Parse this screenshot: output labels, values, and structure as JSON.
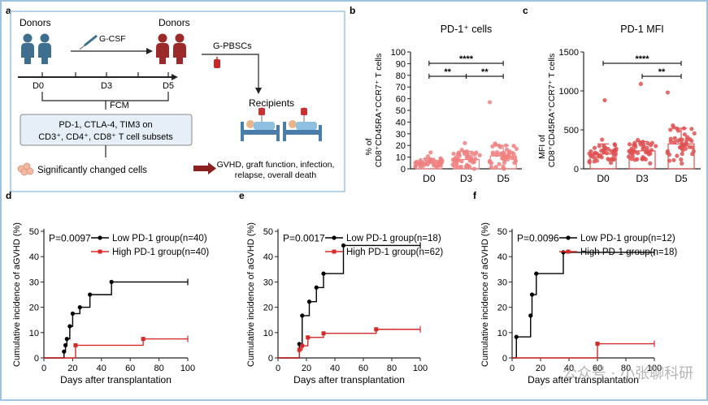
{
  "panel_labels": {
    "a": "a",
    "b": "b",
    "c": "c",
    "d": "d",
    "e": "e",
    "f": "f"
  },
  "schematic": {
    "donors_left": "Donors",
    "donors_right": "Donors",
    "gcsf": "G-CSF",
    "gpbscs": "G-PBSCs",
    "timeline": [
      "D0",
      "D3",
      "D5"
    ],
    "fcm": "FCM",
    "assay_line1": "PD-1, CTLA-4, TIM3 on",
    "assay_line2": "CD3⁺, CD4⁺, CD8⁺ T cell subsets",
    "recipients": "Recipients",
    "changed_cells": "Significantly changed cells",
    "outcomes_line1": "GVHD, graft function, infection,",
    "outcomes_line2": "relapse, overall death",
    "colors": {
      "border": "#9ec3e0",
      "donor_blue": "#3e6f8f",
      "donor_red": "#9b2b2b",
      "box_fill": "#e6eef7",
      "outcome_arrow": "#8b2020"
    }
  },
  "chart_data": [
    {
      "panel": "b",
      "type": "scatter",
      "title": "PD-1⁺ cells",
      "ylabel_prefix": "% of",
      "ylabel": "CD8⁺CD45RA⁺CCR7⁺ T cells",
      "categories": [
        "D0",
        "D3",
        "D5"
      ],
      "ylim": [
        0,
        100
      ],
      "yticks": [
        0,
        10,
        20,
        30,
        40,
        50,
        60,
        70,
        80,
        90,
        100
      ],
      "means": [
        5,
        8,
        11
      ],
      "sd": [
        4,
        7,
        9
      ],
      "maxima": [
        14,
        22,
        57
      ],
      "significance": [
        {
          "from": "D0",
          "to": "D5",
          "label": "****"
        },
        {
          "from": "D0",
          "to": "D3",
          "label": "**"
        },
        {
          "from": "D3",
          "to": "D5",
          "label": "**"
        }
      ],
      "color": "#f08080"
    },
    {
      "panel": "c",
      "type": "scatter",
      "title": "PD-1 MFI",
      "ylabel_prefix": "MFI of",
      "ylabel": "CD8⁺CD45RA⁺CCR7⁺ T cells",
      "categories": [
        "D0",
        "D3",
        "D5"
      ],
      "ylim": [
        0,
        1500
      ],
      "yticks": [
        0,
        500,
        1000,
        1500
      ],
      "means": [
        190,
        230,
        320
      ],
      "sd": [
        130,
        120,
        200
      ],
      "maxima": [
        880,
        1090,
        980
      ],
      "significance": [
        {
          "from": "D0",
          "to": "D5",
          "label": "****"
        },
        {
          "from": "D3",
          "to": "D5",
          "label": "**"
        }
      ],
      "color": "#e05050"
    },
    {
      "panel": "d",
      "type": "line",
      "xlabel": "Days after transplantation",
      "ylabel": "Cumulative incidence of aGVHD (%)",
      "xlim": [
        0,
        100
      ],
      "ylim": [
        0,
        50
      ],
      "xticks": [
        0,
        20,
        40,
        60,
        80,
        100
      ],
      "yticks": [
        0,
        10,
        20,
        30,
        40,
        50
      ],
      "pvalue": "P=0.0097",
      "series": [
        {
          "name": "Low PD-1 group(n=40)",
          "color": "#000000",
          "x": [
            0,
            13,
            14,
            15,
            16,
            18,
            20,
            25,
            32,
            47,
            100
          ],
          "y": [
            0,
            0,
            2.5,
            5,
            7.5,
            12.5,
            17.5,
            20,
            25,
            30,
            30
          ]
        },
        {
          "name": "High PD-1 group(n=40)",
          "color": "#d42a2a",
          "x": [
            0,
            14,
            22,
            69,
            100
          ],
          "y": [
            0,
            0,
            5,
            7.5,
            7.5
          ]
        }
      ]
    },
    {
      "panel": "e",
      "type": "line",
      "xlabel": "Days after transplantation",
      "ylabel": "Cumulative incidence of aGVHD (%)",
      "xlim": [
        0,
        100
      ],
      "ylim": [
        0,
        50
      ],
      "xticks": [
        0,
        20,
        40,
        60,
        80,
        100
      ],
      "yticks": [
        0,
        10,
        20,
        30,
        40,
        50
      ],
      "pvalue": "P=0.0017",
      "series": [
        {
          "name": "Low PD-1 group(n=18)",
          "color": "#000000",
          "x": [
            0,
            13,
            15,
            17,
            22,
            27,
            32,
            46,
            100
          ],
          "y": [
            0,
            0,
            5.5,
            16.7,
            22.2,
            27.8,
            33.3,
            44.4,
            44.4
          ]
        },
        {
          "name": "High PD-1 group(n=62)",
          "color": "#d42a2a",
          "x": [
            0,
            13,
            15,
            17,
            21,
            32,
            69,
            100
          ],
          "y": [
            0,
            0,
            3.2,
            4.8,
            8.1,
            9.7,
            11.3,
            11.3
          ]
        }
      ]
    },
    {
      "panel": "f",
      "type": "line",
      "xlabel": "Days after transplantation",
      "ylabel": "Cumulative incidence of aGVHD (%)",
      "xlim": [
        0,
        100
      ],
      "ylim": [
        0,
        50
      ],
      "xticks": [
        0,
        20,
        40,
        60,
        80,
        100
      ],
      "yticks": [
        0,
        10,
        20,
        30,
        40,
        50
      ],
      "pvalue": "P=0.0096",
      "series": [
        {
          "name": "Low PD-1 group(n=12)",
          "color": "#000000",
          "x": [
            0,
            3,
            13,
            14,
            17,
            36,
            100
          ],
          "y": [
            0,
            8.3,
            16.7,
            25,
            33.3,
            41.7,
            41.7
          ]
        },
        {
          "name": "High PD-1 group(n=18)",
          "color": "#d42a2a",
          "x": [
            0,
            60,
            100
          ],
          "y": [
            0,
            5.6,
            5.6
          ]
        }
      ]
    }
  ],
  "watermark": "公众号 · 小张聊科研"
}
